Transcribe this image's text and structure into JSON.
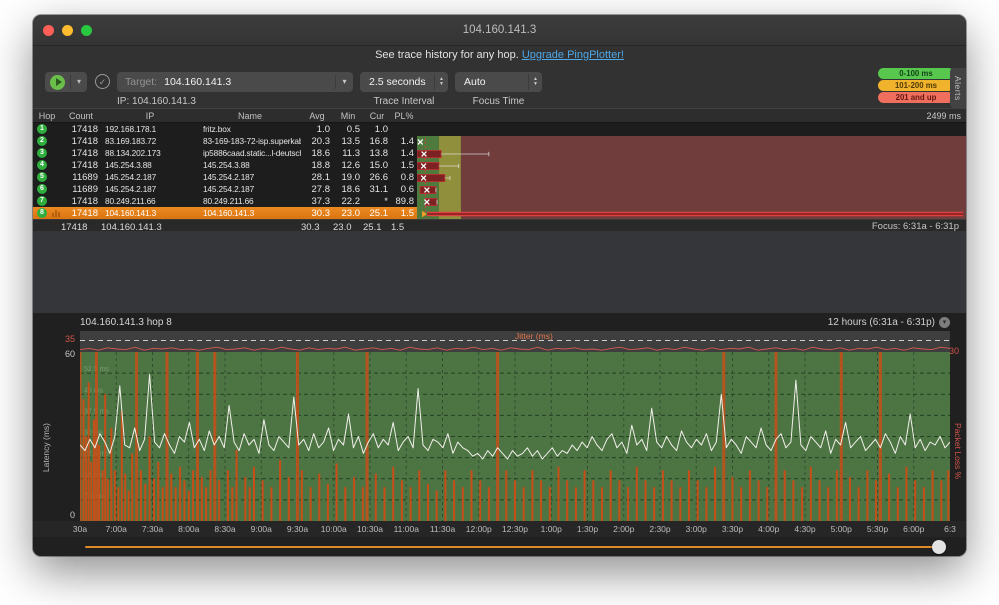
{
  "window": {
    "title": "104.160.141.3"
  },
  "banner": {
    "text": "See trace history for any hop.",
    "link": "Upgrade PingPlotter!"
  },
  "toolbar": {
    "target_label": "Target:",
    "target_value": "104.160.141.3",
    "ip_label": "IP:",
    "ip_value": "104.160.141.3",
    "trace_interval_value": "2.5 seconds",
    "trace_interval_label": "Trace Interval",
    "focus_time_value": "Auto",
    "focus_time_label": "Focus Time",
    "alerts_tab": "Alerts",
    "legend": [
      {
        "label": "0-100 ms",
        "color": "#57c84d",
        "text_color": "#14421a"
      },
      {
        "label": "101-200 ms",
        "color": "#f2b32c",
        "text_color": "#4d3a02"
      },
      {
        "label": "201 and up",
        "color": "#ef6e5e",
        "text_color": "#641710"
      }
    ]
  },
  "trace_table": {
    "columns": [
      "Hop",
      "Count",
      "IP",
      "Name",
      "Avg",
      "Min",
      "Cur",
      "PL%"
    ],
    "scale_label": "2499 ms",
    "rows": [
      {
        "hop": "1",
        "count": "17418",
        "ip": "192.168.178.1",
        "name": "fritz.box",
        "avg": "1.0",
        "min": "0.5",
        "cur": "1.0",
        "pl": "",
        "selected": false
      },
      {
        "hop": "2",
        "count": "17418",
        "ip": "83.169.183.72",
        "name": "83-169-183-72-isp.superkabel.de",
        "avg": "20.3",
        "min": "13.5",
        "cur": "16.8",
        "pl": "1.4",
        "selected": false
      },
      {
        "hop": "3",
        "count": "17418",
        "ip": "88.134.202.173",
        "name": "ip5886caad.static...l-deutschland.de",
        "avg": "18.6",
        "min": "11.3",
        "cur": "13.8",
        "pl": "1.4",
        "selected": false
      },
      {
        "hop": "4",
        "count": "17418",
        "ip": "145.254.3.88",
        "name": "145.254.3.88",
        "avg": "18.8",
        "min": "12.6",
        "cur": "15.0",
        "pl": "1.5",
        "selected": false
      },
      {
        "hop": "5",
        "count": "11689",
        "ip": "145.254.2.187",
        "name": "145.254.2.187",
        "avg": "28.1",
        "min": "19.0",
        "cur": "26.6",
        "pl": "0.8",
        "selected": false
      },
      {
        "hop": "6",
        "count": "11689",
        "ip": "145.254.2.187",
        "name": "145.254.2.187",
        "avg": "27.8",
        "min": "18.6",
        "cur": "31.1",
        "pl": "0.6",
        "selected": false
      },
      {
        "hop": "7",
        "count": "17418",
        "ip": "80.249.211.66",
        "name": "80.249.211.66",
        "avg": "37.3",
        "min": "22.2",
        "cur": "*",
        "pl": "89.8",
        "selected": false
      },
      {
        "hop": "8",
        "count": "17418",
        "ip": "104.160.141.3",
        "name": "104.160.141.3",
        "avg": "30.3",
        "min": "23.0",
        "cur": "25.1",
        "pl": "1.5",
        "selected": true
      }
    ],
    "summary": {
      "count": "17418",
      "ip": "104.160.141.3",
      "name": "",
      "avg": "30.3",
      "min": "23.0",
      "cur": "25.1",
      "pl": "1.5"
    },
    "focus_label": "Focus: 6:31a - 6:31p"
  },
  "chart_data": [
    {
      "type": "bar",
      "title": "Per-hop latency range, scale 0-2499 ms",
      "scale_max_ms": 2499,
      "bands": [
        {
          "to_ms": 100,
          "color": "#4e7a3e"
        },
        {
          "to_ms": 200,
          "color": "#90903c"
        },
        {
          "to_ms": 2499,
          "color": "#703c3c"
        }
      ],
      "focus_line_ms": 38,
      "hops": [
        {
          "hop": 1,
          "marker_ms": 15,
          "box_ms": null,
          "whisker_ms": null,
          "thick": false
        },
        {
          "hop": 2,
          "marker_ms": 32,
          "box_ms": [
            0,
            110
          ],
          "whisker_ms": 327,
          "thick": false
        },
        {
          "hop": 3,
          "marker_ms": 30,
          "box_ms": [
            0,
            100
          ],
          "whisker_ms": 190,
          "thick": false
        },
        {
          "hop": 4,
          "marker_ms": 30,
          "box_ms": [
            0,
            127
          ],
          "whisker_ms": 150,
          "thick": false
        },
        {
          "hop": 5,
          "marker_ms": 45,
          "box_ms": [
            14,
            86
          ],
          "whisker_ms": 86,
          "thick": false
        },
        {
          "hop": 6,
          "marker_ms": 45,
          "box_ms": [
            40,
            91
          ],
          "whisker_ms": 91,
          "thick": false
        },
        {
          "hop": 7,
          "marker_ms": 32,
          "box_ms": null,
          "whisker_ms": 2486,
          "thick": true
        },
        {
          "hop": 8,
          "marker_ms": 45,
          "box_ms": [
            9,
            127
          ],
          "whisker_ms": 127,
          "thick": false
        }
      ]
    },
    {
      "type": "line",
      "title": "104.160.141.3 hop 8",
      "range_label": "12 hours (6:31a - 6:31p)",
      "ylabel_left": "Latency (ms)",
      "ylabel_right": "Packet Loss %",
      "jitter_label": "Jitter (ms)",
      "jitter_axis_left": "35",
      "jitter_axis_right": "30",
      "ylim": [
        0,
        60
      ],
      "y_top_label": "60",
      "y_bottom_label": "0",
      "grid_labels": [
        "52.5 ms",
        "45 ms",
        "37.5 ms",
        "30 ms",
        "22.5 ms",
        "15 ms",
        "7.5 ms"
      ],
      "grid_values_ms": [
        52.5,
        45,
        37.5,
        30,
        22.5,
        15,
        7.5
      ],
      "x_tick_labels": [
        "30a",
        "7:00a",
        "7:30a",
        "8:00a",
        "8:30a",
        "9:00a",
        "9:30a",
        "10:00a",
        "10:30a",
        "11:00a",
        "11:30a",
        "12:00p",
        "12:30p",
        "1:00p",
        "1:30p",
        "2:00p",
        "2:30p",
        "3:00p",
        "3:30p",
        "4:00p",
        "4:30p",
        "5:00p",
        "5:30p",
        "6:00p",
        "6:3"
      ],
      "colors": {
        "plot_bg": "#4d7544",
        "latency_line": "#f2f0ea",
        "loss_bar": "#cf4c15",
        "jitter_line": "#d85c50",
        "strip_bg": "#3e3e3e",
        "scrollbar": "#dd8a2a"
      },
      "latency_ms": [
        27,
        25,
        29,
        26,
        31,
        28,
        24,
        30,
        48,
        27,
        26,
        33,
        25,
        29,
        52,
        28,
        26,
        31,
        27,
        24,
        30,
        28,
        35,
        26,
        29,
        25,
        32,
        27,
        30,
        26,
        41,
        28,
        25,
        31,
        27,
        29,
        24,
        36,
        27,
        25,
        30,
        28,
        26,
        44,
        27,
        29,
        25,
        31,
        26,
        28,
        33,
        25,
        29,
        27,
        38,
        26,
        30,
        24,
        28,
        31,
        26,
        29,
        27,
        35,
        25,
        28,
        30,
        26,
        47,
        27,
        25,
        29,
        28,
        26,
        31,
        24,
        28,
        26,
        25,
        23,
        24,
        22,
        25,
        23,
        26,
        24,
        22,
        25,
        23,
        24,
        26,
        23,
        25,
        22,
        24,
        26,
        23,
        25,
        24,
        27,
        25,
        28,
        26,
        30,
        27,
        25,
        29,
        31,
        26,
        28,
        24,
        34,
        27,
        29,
        25,
        40,
        28,
        26,
        30,
        27,
        25,
        32,
        28,
        26,
        29,
        27,
        31,
        25,
        28,
        45,
        26,
        29,
        27,
        24,
        30,
        28,
        26,
        33,
        27,
        25,
        29,
        31,
        26,
        28,
        50,
        27,
        25,
        30,
        28,
        26,
        32,
        24,
        29,
        27,
        35,
        26,
        28,
        30,
        25,
        27,
        29,
        26,
        31,
        28,
        24,
        30,
        27,
        38,
        26,
        29,
        25,
        28,
        27,
        30,
        26,
        28
      ],
      "jitter_ms": [
        4,
        6,
        3,
        7,
        5,
        4,
        8,
        3,
        6,
        5,
        7,
        4,
        5,
        3,
        6,
        8,
        4,
        5,
        7,
        3,
        6,
        4,
        8,
        5,
        3,
        7,
        4,
        6,
        5,
        8,
        3,
        5,
        7,
        4,
        6,
        3,
        8,
        5,
        4,
        7,
        3,
        6,
        5,
        8,
        4,
        6,
        3,
        7,
        5,
        4,
        8,
        3,
        6,
        5,
        7,
        4,
        5,
        3,
        6,
        8,
        4,
        5,
        7,
        3,
        6,
        4,
        8,
        5,
        3,
        7,
        4,
        6,
        5,
        8,
        3,
        5,
        7,
        4,
        6,
        3,
        8,
        5,
        4,
        7,
        3,
        6,
        5,
        8,
        4,
        6,
        3,
        7,
        5,
        4,
        8,
        6
      ],
      "loss_bars": [
        [
          0.0,
          1
        ],
        [
          0.004,
          0.72
        ],
        [
          0.007,
          0.5
        ],
        [
          0.01,
          0.82
        ],
        [
          0.013,
          0.35
        ],
        [
          0.016,
          0.6
        ],
        [
          0.019,
          1
        ],
        [
          0.022,
          0.45
        ],
        [
          0.026,
          0.3
        ],
        [
          0.029,
          0.75
        ],
        [
          0.032,
          0.25
        ],
        [
          0.036,
          0.55
        ],
        [
          0.04,
          0.3
        ],
        [
          0.044,
          0.2
        ],
        [
          0.048,
          0.65
        ],
        [
          0.052,
          0.28
        ],
        [
          0.056,
          0.18
        ],
        [
          0.06,
          0.4
        ],
        [
          0.065,
          1
        ],
        [
          0.07,
          0.3
        ],
        [
          0.075,
          0.22
        ],
        [
          0.08,
          0.5
        ],
        [
          0.085,
          0.25
        ],
        [
          0.09,
          0.35
        ],
        [
          0.095,
          0.2
        ],
        [
          0.1,
          1
        ],
        [
          0.105,
          0.28
        ],
        [
          0.11,
          0.2
        ],
        [
          0.115,
          0.32
        ],
        [
          0.12,
          0.24
        ],
        [
          0.125,
          0.18
        ],
        [
          0.13,
          0.3
        ],
        [
          0.135,
          1
        ],
        [
          0.14,
          0.26
        ],
        [
          0.145,
          0.2
        ],
        [
          0.15,
          0.3
        ],
        [
          0.155,
          1
        ],
        [
          0.16,
          0.24
        ],
        [
          0.17,
          0.3
        ],
        [
          0.175,
          0.2
        ],
        [
          0.18,
          0.42
        ],
        [
          0.19,
          0.26
        ],
        [
          0.195,
          0.2
        ],
        [
          0.2,
          0.32
        ],
        [
          0.21,
          0.24
        ],
        [
          0.22,
          0.2
        ],
        [
          0.23,
          0.36
        ],
        [
          0.24,
          0.26
        ],
        [
          0.25,
          1
        ],
        [
          0.255,
          0.3
        ],
        [
          0.265,
          0.2
        ],
        [
          0.275,
          0.28
        ],
        [
          0.285,
          0.22
        ],
        [
          0.295,
          0.34
        ],
        [
          0.305,
          0.2
        ],
        [
          0.315,
          0.26
        ],
        [
          0.325,
          0.2
        ],
        [
          0.33,
          1
        ],
        [
          0.34,
          0.28
        ],
        [
          0.35,
          0.2
        ],
        [
          0.36,
          0.32
        ],
        [
          0.37,
          0.24
        ],
        [
          0.38,
          0.2
        ],
        [
          0.39,
          0.3
        ],
        [
          0.4,
          0.22
        ],
        [
          0.41,
          0.18
        ],
        [
          0.42,
          0.3
        ],
        [
          0.43,
          0.24
        ],
        [
          0.44,
          0.2
        ],
        [
          0.45,
          0.3
        ],
        [
          0.46,
          0.24
        ],
        [
          0.47,
          0.2
        ],
        [
          0.48,
          1
        ],
        [
          0.49,
          0.3
        ],
        [
          0.5,
          0.24
        ],
        [
          0.51,
          0.2
        ],
        [
          0.52,
          0.3
        ],
        [
          0.53,
          0.24
        ],
        [
          0.54,
          0.2
        ],
        [
          0.55,
          0.32
        ],
        [
          0.56,
          0.24
        ],
        [
          0.57,
          0.2
        ],
        [
          0.58,
          0.3
        ],
        [
          0.59,
          0.24
        ],
        [
          0.6,
          0.2
        ],
        [
          0.61,
          0.3
        ],
        [
          0.62,
          0.24
        ],
        [
          0.63,
          0.2
        ],
        [
          0.64,
          0.32
        ],
        [
          0.65,
          0.24
        ],
        [
          0.66,
          0.2
        ],
        [
          0.67,
          0.3
        ],
        [
          0.68,
          0.24
        ],
        [
          0.69,
          0.2
        ],
        [
          0.7,
          0.3
        ],
        [
          0.71,
          0.24
        ],
        [
          0.72,
          0.2
        ],
        [
          0.73,
          0.32
        ],
        [
          0.74,
          1
        ],
        [
          0.75,
          0.26
        ],
        [
          0.76,
          0.2
        ],
        [
          0.77,
          0.3
        ],
        [
          0.78,
          0.24
        ],
        [
          0.79,
          0.2
        ],
        [
          0.8,
          1
        ],
        [
          0.81,
          0.3
        ],
        [
          0.82,
          0.24
        ],
        [
          0.83,
          0.2
        ],
        [
          0.84,
          0.32
        ],
        [
          0.85,
          0.24
        ],
        [
          0.86,
          0.2
        ],
        [
          0.87,
          0.3
        ],
        [
          0.875,
          1
        ],
        [
          0.885,
          0.26
        ],
        [
          0.895,
          0.2
        ],
        [
          0.905,
          0.3
        ],
        [
          0.915,
          0.24
        ],
        [
          0.92,
          1
        ],
        [
          0.93,
          0.28
        ],
        [
          0.94,
          0.2
        ],
        [
          0.95,
          0.32
        ],
        [
          0.96,
          0.24
        ],
        [
          0.97,
          0.2
        ],
        [
          0.98,
          0.3
        ],
        [
          0.99,
          0.24
        ],
        [
          0.998,
          0.3
        ]
      ]
    }
  ]
}
